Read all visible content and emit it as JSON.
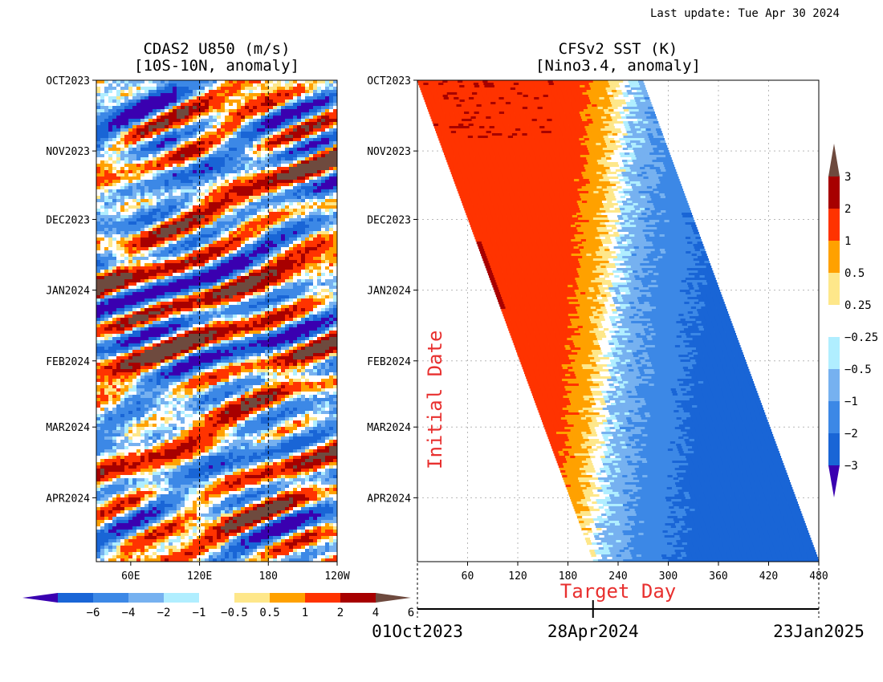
{
  "header": {
    "last_update": "Last update: Tue Apr 30 2024"
  },
  "colors": {
    "u850_levels": [
      "#3a00b0",
      "#1965d6",
      "#3c88e6",
      "#76b1f0",
      "#b0eeff",
      "#ffffff",
      "#fee78a",
      "#ffa100",
      "#ff3300",
      "#a70000",
      "#6e4a3e"
    ],
    "sst_levels": [
      "#3a00b0",
      "#1965d6",
      "#3c88e6",
      "#76b1f0",
      "#b0eeff",
      "#ffffff",
      "#fee78a",
      "#ffa100",
      "#ff3300",
      "#a70000",
      "#6e4a3e"
    ],
    "annotation": "#e8302f"
  },
  "chart_data": [
    {
      "type": "heatmap",
      "title_line1": "CDAS2 U850 (m/s)",
      "title_line2": "[10S-10N, anomaly]",
      "x_ticks": [
        "60E",
        "120E",
        "180",
        "120W"
      ],
      "x_tick_lon": [
        60,
        120,
        180,
        240
      ],
      "x_range_lon": [
        30,
        240
      ],
      "dashed_lines_lon": [
        120,
        180
      ],
      "y_ticks": [
        "OCT2023",
        "NOV2023",
        "DEC2023",
        "JAN2024",
        "FEB2024",
        "MAR2024",
        "APR2024"
      ],
      "y_tick_day": [
        0,
        31,
        61,
        92,
        123,
        152,
        183
      ],
      "y_range_day": [
        0,
        211
      ],
      "colorbar": {
        "orientation": "horizontal",
        "labels": [
          "−6",
          "−4",
          "−2",
          "−1",
          "−0.5",
          "0.5",
          "1",
          "2",
          "4",
          "6"
        ],
        "bounds": [
          -6,
          -4,
          -2,
          -1,
          -0.5,
          0.5,
          1,
          2,
          4,
          6
        ]
      }
    },
    {
      "type": "heatmap",
      "title_line1": "CFSv2 SST (K)",
      "title_line2": "[Nino3.4, anomaly]",
      "xlabel": "Target Day",
      "ylabel": "Initial Date",
      "x_ticks": [
        "60",
        "120",
        "180",
        "240",
        "300",
        "360",
        "420",
        "480"
      ],
      "x_tick_day": [
        60,
        120,
        180,
        240,
        300,
        360,
        420,
        480
      ],
      "x_range_day": [
        0,
        480
      ],
      "y_ticks": [
        "OCT2023",
        "NOV2023",
        "DEC2023",
        "JAN2024",
        "FEB2024",
        "MAR2024",
        "APR2024"
      ],
      "y_tick_day": [
        0,
        31,
        61,
        92,
        123,
        152,
        183
      ],
      "y_range_day": [
        0,
        211
      ],
      "forecast_length_days": 270,
      "date_axis": {
        "labels": [
          "01Oct2023",
          "28Apr2024",
          "23Jan2025"
        ],
        "label_day": [
          0,
          210,
          480
        ]
      },
      "colorbar": {
        "orientation": "vertical",
        "labels": [
          "3",
          "2",
          "1",
          "0.5",
          "0.25",
          "−0.25",
          "−0.5",
          "−1",
          "−2",
          "−3"
        ],
        "bounds": [
          3,
          2,
          1,
          0.5,
          0.25,
          -0.25,
          -0.5,
          -1,
          -2,
          -3
        ]
      }
    }
  ]
}
